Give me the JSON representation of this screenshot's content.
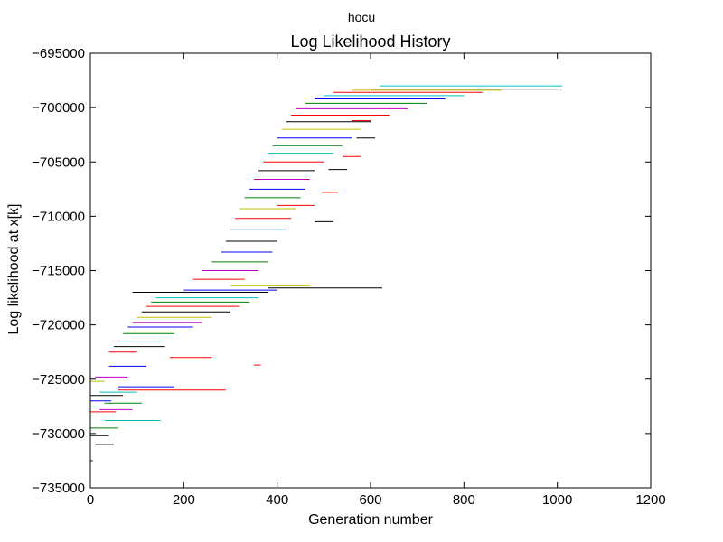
{
  "suptitle": "hocu",
  "chart_data": {
    "type": "line",
    "title": "Log Likelihood History",
    "xlabel": "Generation number",
    "ylabel": "Log likelihood at x[k]",
    "xlim": [
      0,
      1200
    ],
    "ylim": [
      -735000,
      -695000
    ],
    "xticks": [
      0,
      200,
      400,
      600,
      800,
      1000,
      1200
    ],
    "yticks": [
      -735000,
      -730000,
      -725000,
      -720000,
      -715000,
      -710000,
      -705000,
      -700000,
      -695000
    ],
    "xtick_labels": [
      "0",
      "200",
      "400",
      "600",
      "800",
      "1000",
      "1200"
    ],
    "ytick_labels": [
      "−735000",
      "−730000",
      "−725000",
      "−720000",
      "−715000",
      "−710000",
      "−705000",
      "−700000",
      "−695000"
    ],
    "grid": false,
    "legend": "none",
    "series_colors": [
      "#0000ff",
      "#008000",
      "#ff0000",
      "#00bfbf",
      "#bf00bf",
      "#bfbf00",
      "#000000"
    ],
    "segments": [
      {
        "x0": 0,
        "x1": 60,
        "y": -729500,
        "color": "#008000"
      },
      {
        "x0": 0,
        "x1": 55,
        "y": -728000,
        "color": "#ff0000"
      },
      {
        "x0": 0,
        "x1": 45,
        "y": -727000,
        "color": "#0000ff"
      },
      {
        "x0": 0,
        "x1": 70,
        "y": -726500,
        "color": "#000000"
      },
      {
        "x0": 0,
        "x1": 40,
        "y": -730200,
        "color": "#000000"
      },
      {
        "x0": 0,
        "x1": 30,
        "y": -725200,
        "color": "#bfbf00"
      },
      {
        "x0": 10,
        "x1": 80,
        "y": -724800,
        "color": "#bf00bf"
      },
      {
        "x0": 20,
        "x1": 100,
        "y": -726200,
        "color": "#00bfbf"
      },
      {
        "x0": 30,
        "x1": 110,
        "y": -727200,
        "color": "#008000"
      },
      {
        "x0": 40,
        "x1": 120,
        "y": -723800,
        "color": "#0000ff"
      },
      {
        "x0": 40,
        "x1": 100,
        "y": -722500,
        "color": "#ff0000"
      },
      {
        "x0": 50,
        "x1": 160,
        "y": -722000,
        "color": "#000000"
      },
      {
        "x0": 60,
        "x1": 150,
        "y": -721500,
        "color": "#00bfbf"
      },
      {
        "x0": 60,
        "x1": 290,
        "y": -726000,
        "color": "#ff0000"
      },
      {
        "x0": 70,
        "x1": 180,
        "y": -720800,
        "color": "#008000"
      },
      {
        "x0": 80,
        "x1": 220,
        "y": -720200,
        "color": "#0000ff"
      },
      {
        "x0": 90,
        "x1": 240,
        "y": -719800,
        "color": "#bf00bf"
      },
      {
        "x0": 100,
        "x1": 260,
        "y": -719300,
        "color": "#bfbf00"
      },
      {
        "x0": 110,
        "x1": 300,
        "y": -718800,
        "color": "#000000"
      },
      {
        "x0": 120,
        "x1": 320,
        "y": -718300,
        "color": "#ff0000"
      },
      {
        "x0": 130,
        "x1": 340,
        "y": -717900,
        "color": "#008000"
      },
      {
        "x0": 140,
        "x1": 360,
        "y": -717500,
        "color": "#00bfbf"
      },
      {
        "x0": 90,
        "x1": 380,
        "y": -717000,
        "color": "#000000"
      },
      {
        "x0": 200,
        "x1": 400,
        "y": -716800,
        "color": "#0000ff"
      },
      {
        "x0": 380,
        "x1": 625,
        "y": -716600,
        "color": "#000000"
      },
      {
        "x0": 300,
        "x1": 470,
        "y": -716400,
        "color": "#bfbf00"
      },
      {
        "x0": 220,
        "x1": 330,
        "y": -715800,
        "color": "#ff0000"
      },
      {
        "x0": 240,
        "x1": 360,
        "y": -715000,
        "color": "#bf00bf"
      },
      {
        "x0": 260,
        "x1": 380,
        "y": -714200,
        "color": "#008000"
      },
      {
        "x0": 280,
        "x1": 390,
        "y": -713300,
        "color": "#0000ff"
      },
      {
        "x0": 290,
        "x1": 400,
        "y": -712300,
        "color": "#000000"
      },
      {
        "x0": 300,
        "x1": 420,
        "y": -711200,
        "color": "#00bfbf"
      },
      {
        "x0": 310,
        "x1": 430,
        "y": -710200,
        "color": "#ff0000"
      },
      {
        "x0": 320,
        "x1": 440,
        "y": -709300,
        "color": "#bfbf00"
      },
      {
        "x0": 330,
        "x1": 450,
        "y": -708300,
        "color": "#008000"
      },
      {
        "x0": 340,
        "x1": 460,
        "y": -707500,
        "color": "#0000ff"
      },
      {
        "x0": 350,
        "x1": 470,
        "y": -706600,
        "color": "#bf00bf"
      },
      {
        "x0": 360,
        "x1": 480,
        "y": -705800,
        "color": "#000000"
      },
      {
        "x0": 370,
        "x1": 500,
        "y": -705000,
        "color": "#ff0000"
      },
      {
        "x0": 380,
        "x1": 520,
        "y": -704200,
        "color": "#00bfbf"
      },
      {
        "x0": 390,
        "x1": 540,
        "y": -703500,
        "color": "#008000"
      },
      {
        "x0": 400,
        "x1": 560,
        "y": -702800,
        "color": "#0000ff"
      },
      {
        "x0": 410,
        "x1": 580,
        "y": -702000,
        "color": "#bfbf00"
      },
      {
        "x0": 420,
        "x1": 600,
        "y": -701300,
        "color": "#000000"
      },
      {
        "x0": 430,
        "x1": 640,
        "y": -700700,
        "color": "#ff0000"
      },
      {
        "x0": 440,
        "x1": 680,
        "y": -700100,
        "color": "#bf00bf"
      },
      {
        "x0": 460,
        "x1": 720,
        "y": -699600,
        "color": "#008000"
      },
      {
        "x0": 480,
        "x1": 760,
        "y": -699200,
        "color": "#0000ff"
      },
      {
        "x0": 500,
        "x1": 800,
        "y": -698900,
        "color": "#00bfbf"
      },
      {
        "x0": 520,
        "x1": 840,
        "y": -698600,
        "color": "#ff0000"
      },
      {
        "x0": 560,
        "x1": 880,
        "y": -698400,
        "color": "#bfbf00"
      },
      {
        "x0": 600,
        "x1": 1010,
        "y": -698300,
        "color": "#000000"
      },
      {
        "x0": 620,
        "x1": 1010,
        "y": -698000,
        "color": "#00bfbf"
      },
      {
        "x0": 560,
        "x1": 600,
        "y": -701200,
        "color": "#ff0000"
      },
      {
        "x0": 570,
        "x1": 610,
        "y": -702800,
        "color": "#000000"
      },
      {
        "x0": 540,
        "x1": 580,
        "y": -704500,
        "color": "#ff0000"
      },
      {
        "x0": 510,
        "x1": 550,
        "y": -705700,
        "color": "#000000"
      },
      {
        "x0": 495,
        "x1": 530,
        "y": -707800,
        "color": "#ff0000"
      },
      {
        "x0": 480,
        "x1": 520,
        "y": -710500,
        "color": "#000000"
      },
      {
        "x0": 400,
        "x1": 480,
        "y": -709000,
        "color": "#ff0000"
      },
      {
        "x0": 170,
        "x1": 260,
        "y": -723000,
        "color": "#ff0000"
      },
      {
        "x0": 60,
        "x1": 180,
        "y": -725700,
        "color": "#0000ff"
      },
      {
        "x0": 30,
        "x1": 150,
        "y": -728800,
        "color": "#00bfbf"
      },
      {
        "x0": 20,
        "x1": 90,
        "y": -727800,
        "color": "#bf00bf"
      },
      {
        "x0": 10,
        "x1": 50,
        "y": -731000,
        "color": "#000000"
      },
      {
        "x0": 0,
        "x1": 5,
        "y": -732500,
        "color": "#000000"
      },
      {
        "x0": 350,
        "x1": 365,
        "y": -723700,
        "color": "#ff0000"
      }
    ]
  }
}
